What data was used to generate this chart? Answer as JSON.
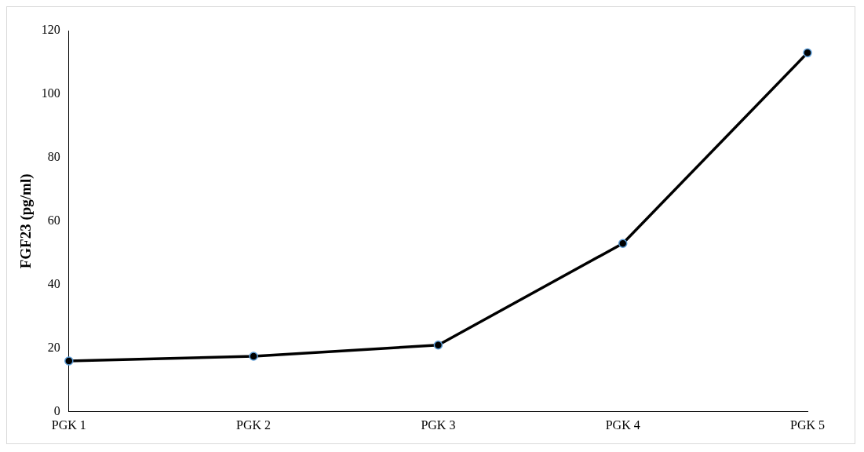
{
  "chart_data": {
    "type": "line",
    "ylabel": "FGF23 (pg/ml)",
    "categories": [
      "PGK 1",
      "PGK 2",
      "PGK 3",
      "PGK 4",
      "PGK 5"
    ],
    "series": [
      {
        "color": "#000000",
        "values": [
          16,
          17.5,
          21,
          53,
          113
        ]
      }
    ],
    "ylim": [
      0,
      120
    ],
    "yticks": [
      0,
      20,
      40,
      60,
      80,
      100,
      120
    ],
    "grid": false,
    "legend": false,
    "marker": "circle",
    "line_style": "solid"
  }
}
